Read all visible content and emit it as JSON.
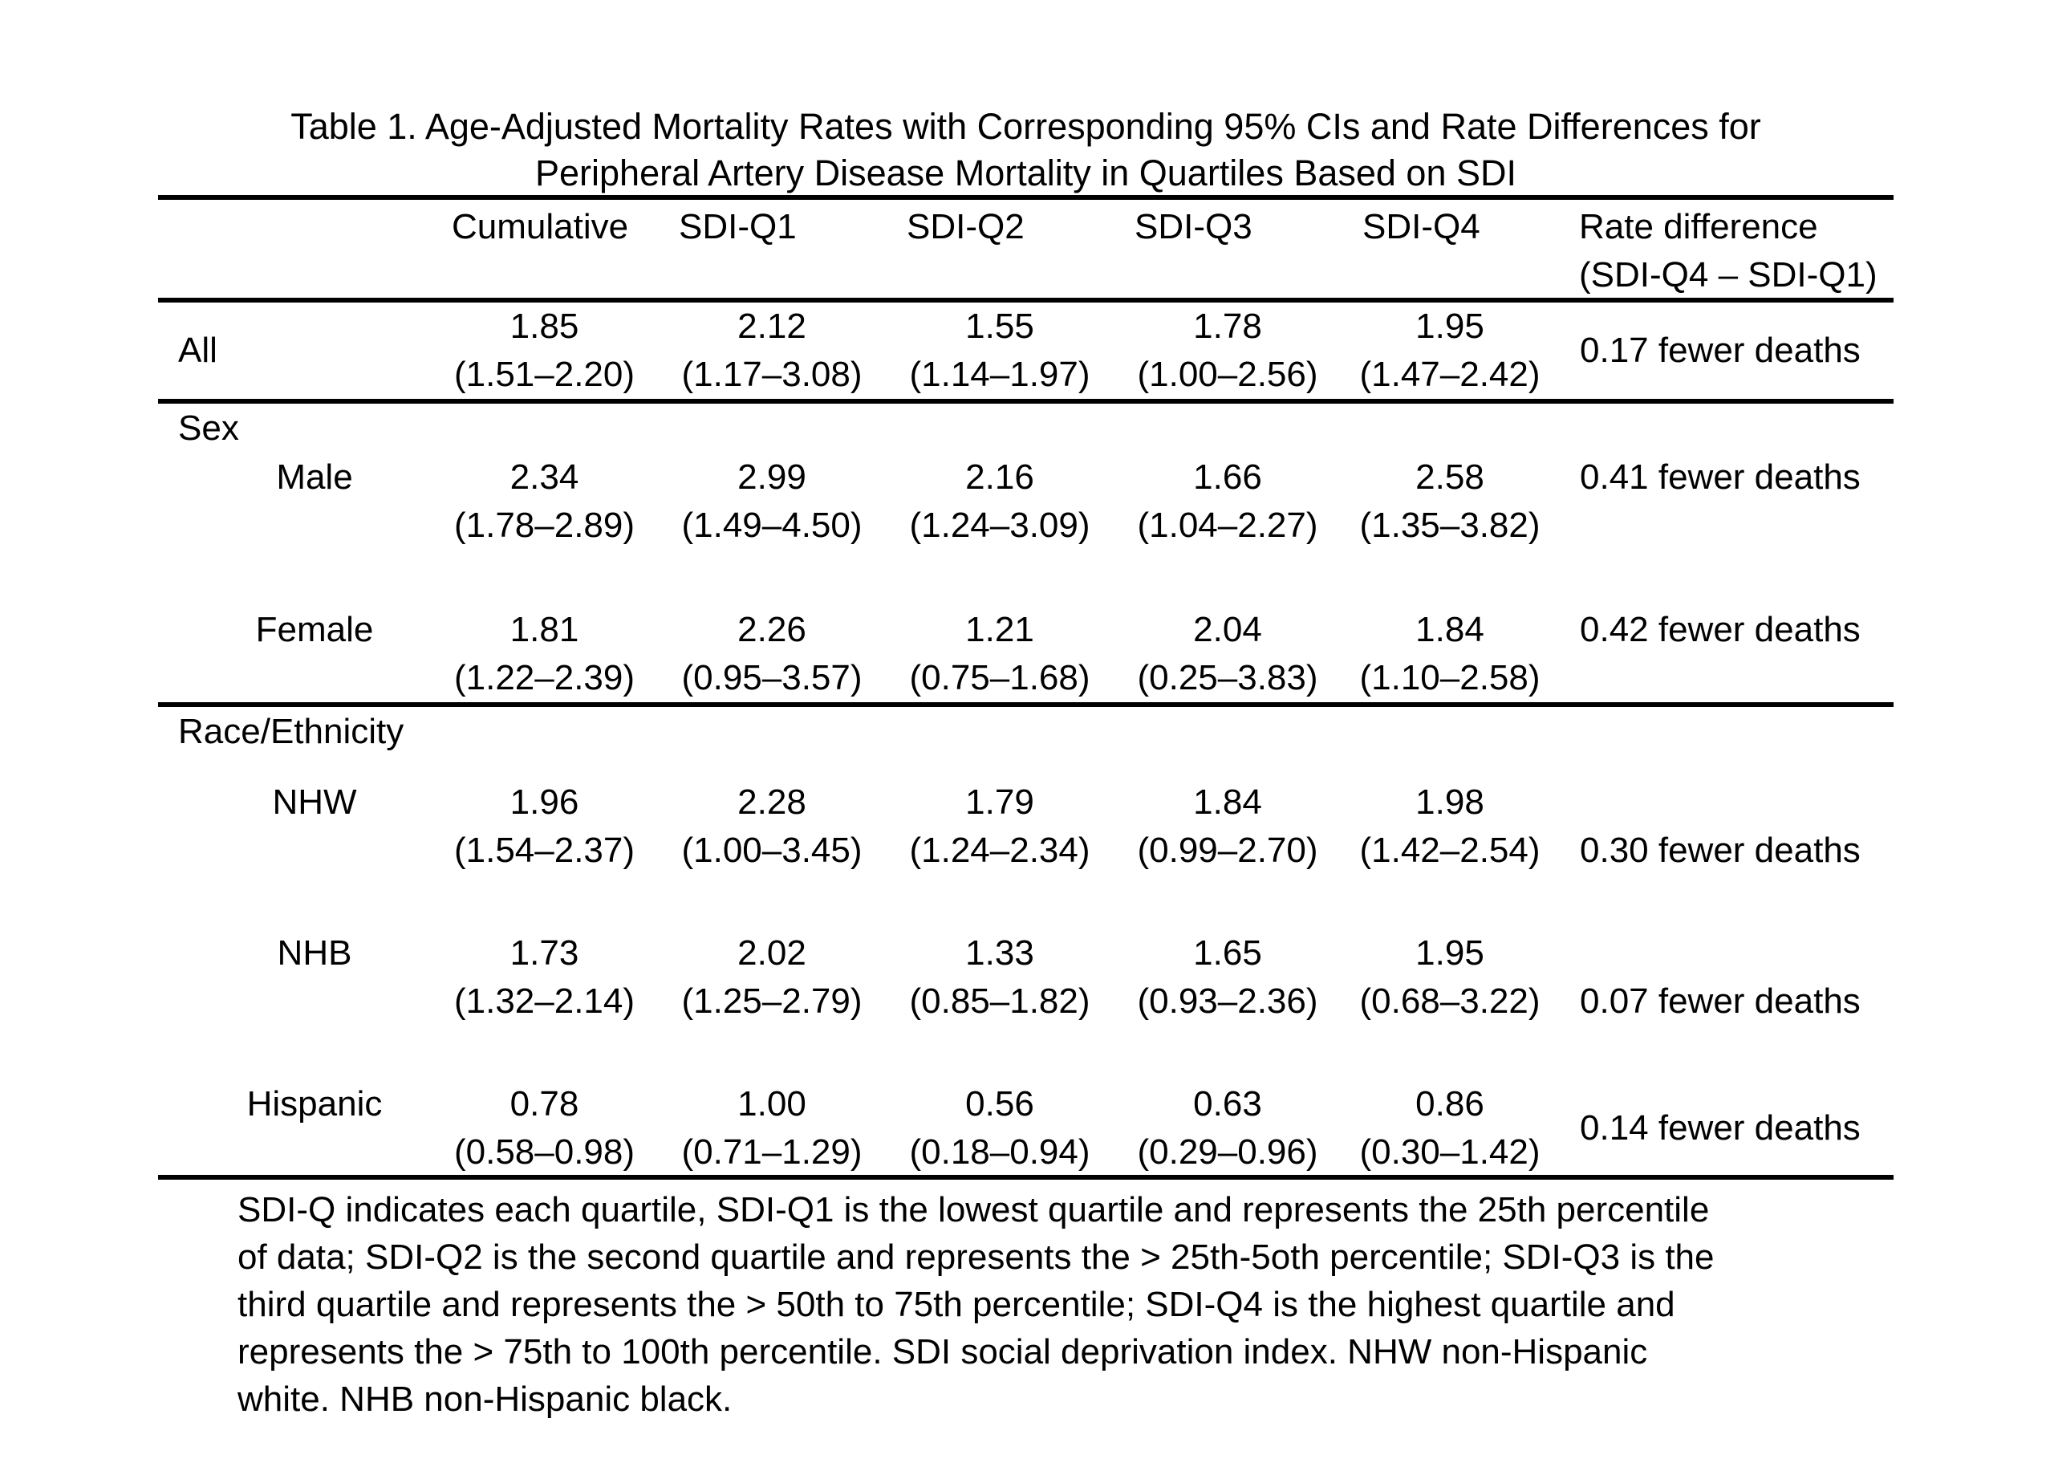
{
  "title": {
    "line1": "Table 1. Age-Adjusted Mortality Rates with Corresponding 95% CIs and Rate Differences for",
    "line2": "Peripheral Artery Disease Mortality in Quartiles Based on SDI"
  },
  "header": {
    "cumulative": "Cumulative",
    "sdi_q1": "SDI-Q1",
    "sdi_q2": "SDI-Q2",
    "sdi_q3": "SDI-Q3",
    "sdi_q4": "SDI-Q4",
    "rate_diff_line1": "Rate difference",
    "rate_diff_line2": "(SDI-Q4 – SDI-Q1)"
  },
  "sections": {
    "sex": "Sex",
    "race_ethnicity": "Race/Ethnicity"
  },
  "rows": [
    {
      "label": "All",
      "cells": [
        {
          "rate": "1.85",
          "ci": "(1.51–2.20)"
        },
        {
          "rate": "2.12",
          "ci": "(1.17–3.08)"
        },
        {
          "rate": "1.55",
          "ci": "(1.14–1.97)"
        },
        {
          "rate": "1.78",
          "ci": "(1.00–2.56)"
        },
        {
          "rate": "1.95",
          "ci": "(1.47–2.42)"
        }
      ],
      "rate_diff": "0.17 fewer deaths"
    },
    {
      "label": "Male",
      "cells": [
        {
          "rate": "2.34",
          "ci": "(1.78–2.89)"
        },
        {
          "rate": "2.99",
          "ci": "(1.49–4.50)"
        },
        {
          "rate": "2.16",
          "ci": "(1.24–3.09)"
        },
        {
          "rate": "1.66",
          "ci": "(1.04–2.27)"
        },
        {
          "rate": "2.58",
          "ci": "(1.35–3.82)"
        }
      ],
      "rate_diff": "0.41 fewer deaths"
    },
    {
      "label": "Female",
      "cells": [
        {
          "rate": "1.81",
          "ci": "(1.22–2.39)"
        },
        {
          "rate": "2.26",
          "ci": "(0.95–3.57)"
        },
        {
          "rate": "1.21",
          "ci": "(0.75–1.68)"
        },
        {
          "rate": "2.04",
          "ci": "(0.25–3.83)"
        },
        {
          "rate": "1.84",
          "ci": "(1.10–2.58)"
        }
      ],
      "rate_diff": "0.42 fewer deaths"
    },
    {
      "label": "NHW",
      "cells": [
        {
          "rate": "1.96",
          "ci": "(1.54–2.37)"
        },
        {
          "rate": "2.28",
          "ci": "(1.00–3.45)"
        },
        {
          "rate": "1.79",
          "ci": "(1.24–2.34)"
        },
        {
          "rate": "1.84",
          "ci": "(0.99–2.70)"
        },
        {
          "rate": "1.98",
          "ci": "(1.42–2.54)"
        }
      ],
      "rate_diff": "0.30 fewer deaths"
    },
    {
      "label": "NHB",
      "cells": [
        {
          "rate": "1.73",
          "ci": "(1.32–2.14)"
        },
        {
          "rate": "2.02",
          "ci": "(1.25–2.79)"
        },
        {
          "rate": "1.33",
          "ci": "(0.85–1.82)"
        },
        {
          "rate": "1.65",
          "ci": "(0.93–2.36)"
        },
        {
          "rate": "1.95",
          "ci": "(0.68–3.22)"
        }
      ],
      "rate_diff": "0.07 fewer deaths"
    },
    {
      "label": "Hispanic",
      "cells": [
        {
          "rate": "0.78",
          "ci": "(0.58–0.98)"
        },
        {
          "rate": "1.00",
          "ci": "(0.71–1.29)"
        },
        {
          "rate": "0.56",
          "ci": "(0.18–0.94)"
        },
        {
          "rate": "0.63",
          "ci": "(0.29–0.96)"
        },
        {
          "rate": "0.86",
          "ci": "(0.30–1.42)"
        }
      ],
      "rate_diff": "0.14 fewer deaths"
    }
  ],
  "footnote_lines": [
    "SDI-Q indicates each quartile, SDI-Q1 is the lowest quartile and represents the 25th percentile",
    "of data; SDI-Q2 is the second quartile and represents the > 25th-5oth percentile; SDI-Q3 is the",
    "third quartile and represents the > 50th to 75th percentile; SDI-Q4 is the highest quartile and",
    "represents the > 75th to 100th percentile. SDI social deprivation index. NHW non-Hispanic",
    "white. NHB non-Hispanic black."
  ]
}
